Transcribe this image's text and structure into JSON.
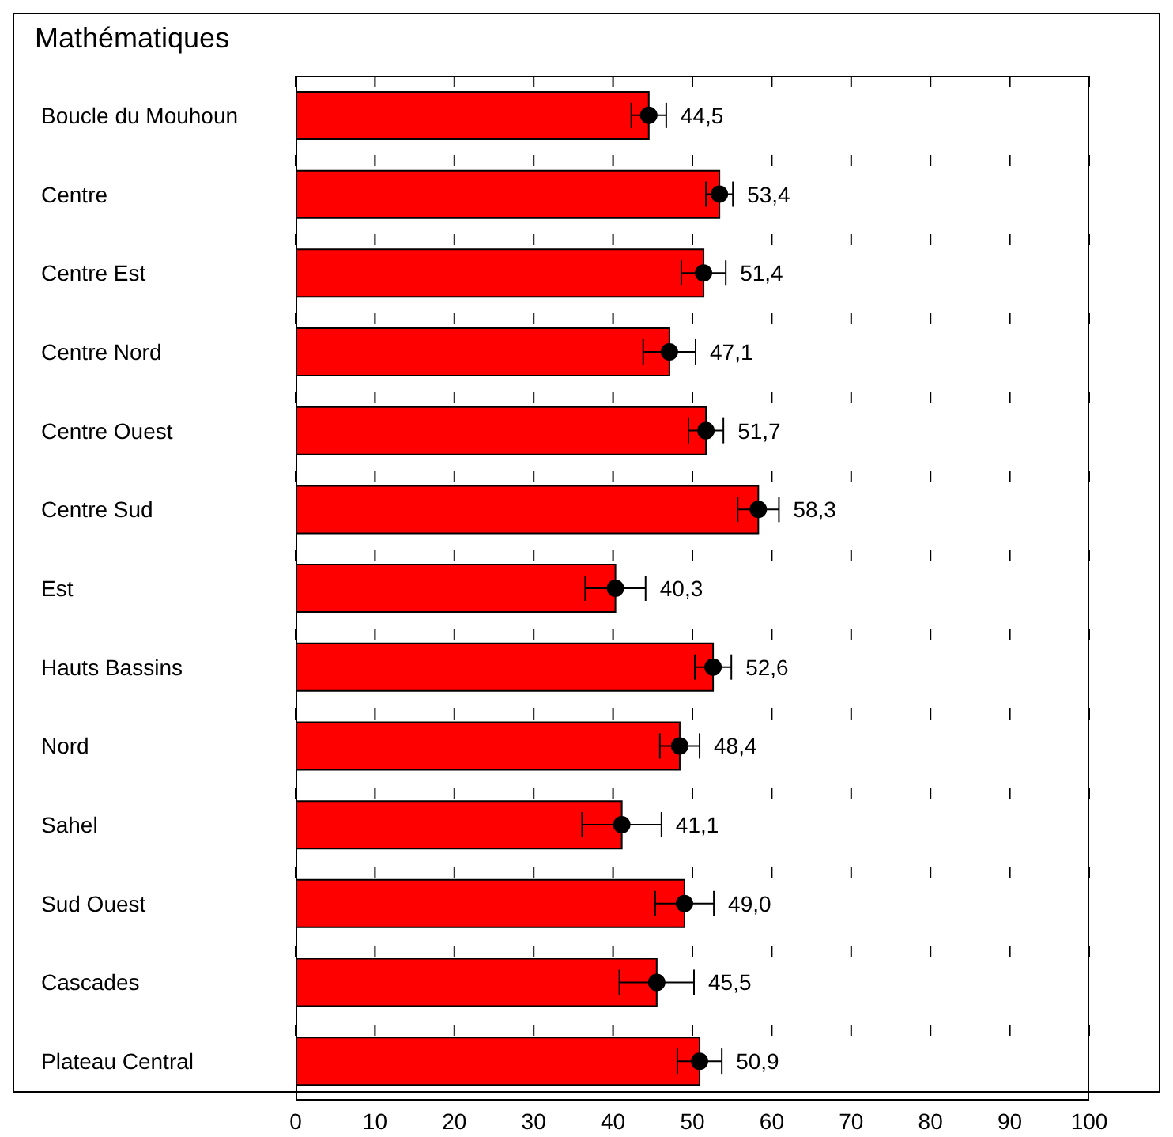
{
  "chart_data": {
    "type": "bar",
    "orientation": "horizontal",
    "title": "Mathématiques",
    "categories": [
      "Boucle du Mouhoun",
      "Centre",
      "Centre Est",
      "Centre Nord",
      "Centre Ouest",
      "Centre Sud",
      "Est",
      "Hauts Bassins",
      "Nord",
      "Sahel",
      "Sud Ouest",
      "Cascades",
      "Plateau Central"
    ],
    "series": [
      {
        "color": "#ff0000",
        "values": [
          44.5,
          53.4,
          51.4,
          47.1,
          51.7,
          58.3,
          40.3,
          52.6,
          48.4,
          41.1,
          49.0,
          45.5,
          50.9
        ]
      },
      {
        "type": "scatter",
        "color": "#000000",
        "values": [
          44.5,
          53.4,
          51.4,
          47.1,
          51.7,
          58.3,
          40.3,
          52.6,
          48.4,
          41.1,
          49.0,
          45.5,
          50.9
        ],
        "errors": [
          2.2,
          1.7,
          2.8,
          3.3,
          2.2,
          2.6,
          3.8,
          2.3,
          2.5,
          5.0,
          3.7,
          4.7,
          2.8
        ],
        "value_labels": [
          "44,5",
          "53,4",
          "51,4",
          "47,1",
          "51,7",
          "58,3",
          "40,3",
          "52,6",
          "48,4",
          "41,1",
          "49,0",
          "45,5",
          "50,9"
        ]
      }
    ],
    "xlim": [
      0,
      100
    ],
    "xticks": [
      0,
      10,
      20,
      30,
      40,
      50,
      60,
      70,
      80,
      90,
      100
    ],
    "grid": "x",
    "marker": "circle"
  }
}
